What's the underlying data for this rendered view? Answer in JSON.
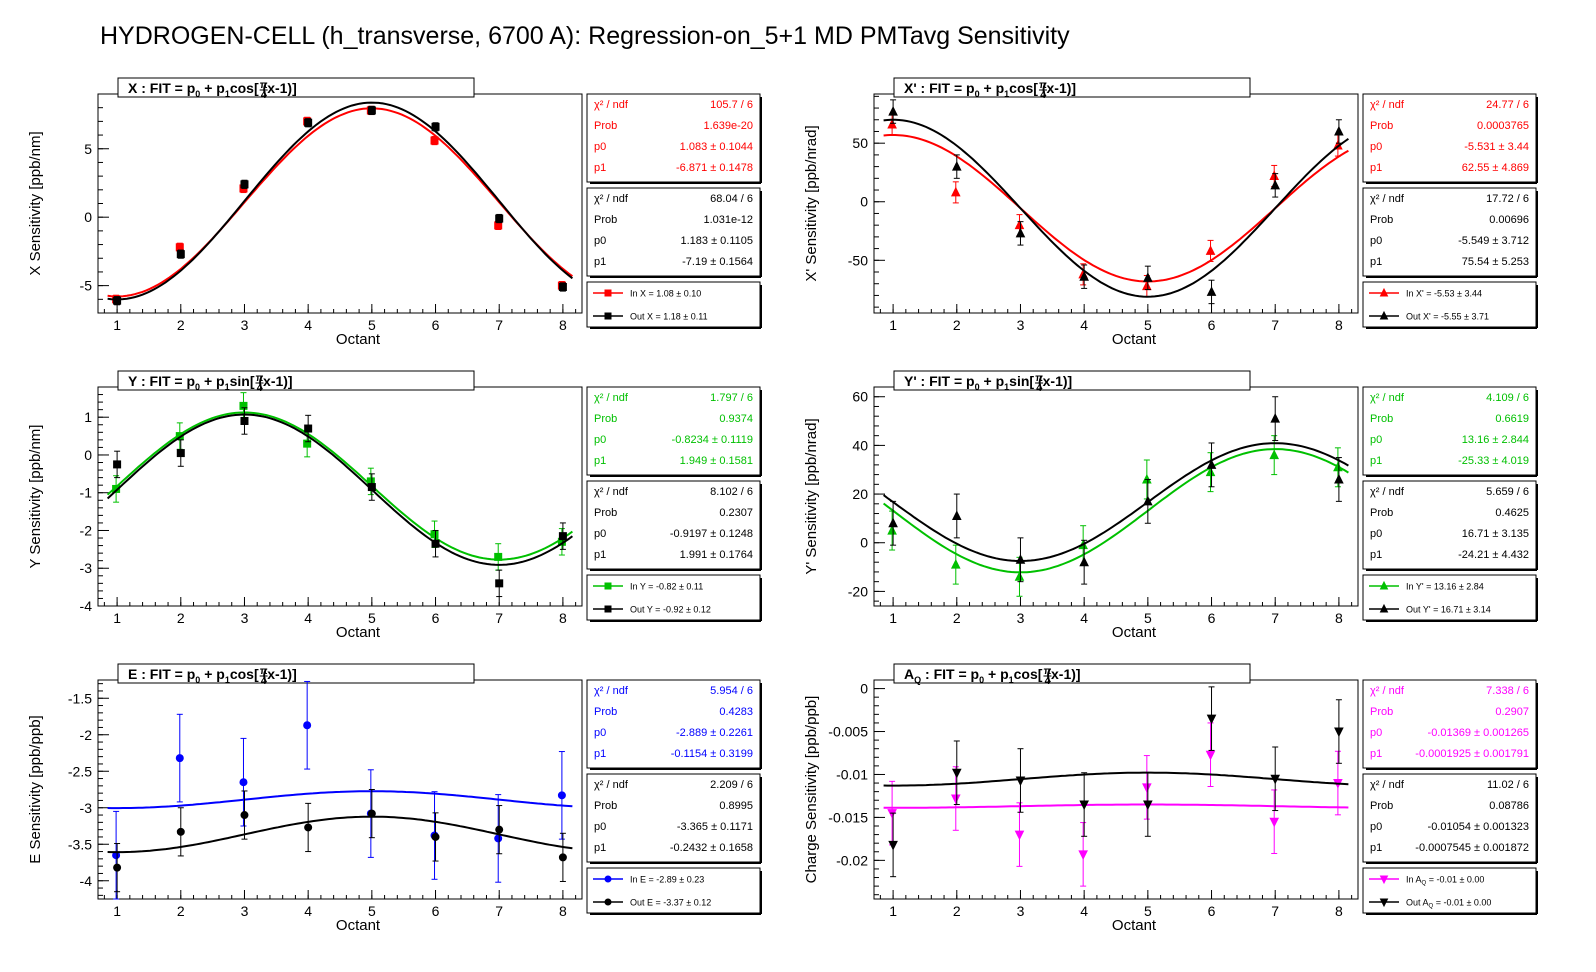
{
  "page_title": "HYDROGEN-CELL (h_transverse, 6700 A): Regression-on_5+1 MD PMTavg Sensitivity",
  "chart_data": [
    {
      "type": "scatter",
      "title_sym": "X",
      "title_fn": "cos",
      "ylabel": "X Sensitivity [ppb/nm]",
      "xlabel": "Octant",
      "xlim": [
        0.7,
        8.3
      ],
      "ylim": [
        -7,
        9
      ],
      "yticks": [
        -5,
        0,
        5
      ],
      "yticklabels": [
        "-5",
        "0",
        "5"
      ],
      "marker": "square",
      "in_color": "#ff0000",
      "series": [
        {
          "name": "In X = 1.08 ± 0.10",
          "x": [
            1,
            2,
            3,
            4,
            5,
            6,
            7,
            8
          ],
          "y": [
            -6.0,
            -2.2,
            2.1,
            7.0,
            7.8,
            5.6,
            -0.6,
            -5.0
          ],
          "err": [
            0.3,
            0.3,
            0.3,
            0.3,
            0.3,
            0.3,
            0.3,
            0.3
          ],
          "p0": 1.083,
          "p1": -6.871
        },
        {
          "name": "Out X = 1.18 ± 0.11",
          "x": [
            1,
            2,
            3,
            4,
            5,
            6,
            7,
            8
          ],
          "y": [
            -6.1,
            -2.7,
            2.4,
            6.9,
            7.8,
            6.6,
            -0.1,
            -5.1
          ],
          "err": [
            0.3,
            0.3,
            0.3,
            0.3,
            0.3,
            0.3,
            0.3,
            0.3
          ],
          "p0": 1.183,
          "p1": -7.19
        }
      ],
      "stats": [
        {
          "rows": [
            [
              "χ² / ndf",
              "105.7 / 6"
            ],
            [
              "Prob",
              "1.639e-20"
            ],
            [
              "p0",
              "1.083 ± 0.1044"
            ],
            [
              "p1",
              "-6.871 ± 0.1478"
            ]
          ]
        },
        {
          "rows": [
            [
              "χ² / ndf",
              "68.04 / 6"
            ],
            [
              "Prob",
              "1.031e-12"
            ],
            [
              "p0",
              "1.183 ± 0.1105"
            ],
            [
              "p1",
              "-7.19 ± 0.1564"
            ]
          ]
        }
      ]
    },
    {
      "type": "scatter",
      "title_sym": "X'",
      "title_fn": "cos",
      "ylabel": "X' Sensitivity [ppb/nrad]",
      "xlabel": "Octant",
      "xlim": [
        0.7,
        8.3
      ],
      "ylim": [
        -95,
        92
      ],
      "yticks": [
        -50,
        0,
        50
      ],
      "yticklabels": [
        "-50",
        "0",
        "50"
      ],
      "marker": "triangle-up",
      "in_color": "#ff0000",
      "series": [
        {
          "name": "In X' = -5.53 ± 3.44",
          "x": [
            1,
            2,
            3,
            4,
            5,
            6,
            7,
            8
          ],
          "y": [
            66,
            8,
            -20,
            -62,
            -72,
            -42,
            22,
            48
          ],
          "err": [
            9,
            9,
            9,
            9,
            9,
            9,
            9,
            9
          ],
          "p0": -5.531,
          "p1": 62.55
        },
        {
          "name": "Out X' = -5.55 ± 3.71",
          "x": [
            1,
            2,
            3,
            4,
            5,
            6,
            7,
            8
          ],
          "y": [
            77,
            30,
            -27,
            -64,
            -65,
            -77,
            14,
            60
          ],
          "err": [
            10,
            10,
            10,
            10,
            10,
            10,
            10,
            10
          ],
          "p0": -5.549,
          "p1": 75.54
        }
      ],
      "stats": [
        {
          "rows": [
            [
              "χ² / ndf",
              "24.77 / 6"
            ],
            [
              "Prob",
              "0.0003765"
            ],
            [
              "p0",
              "-5.531 ± 3.44"
            ],
            [
              "p1",
              "62.55 ± 4.869"
            ]
          ]
        },
        {
          "rows": [
            [
              "χ² / ndf",
              "17.72 / 6"
            ],
            [
              "Prob",
              "0.00696"
            ],
            [
              "p0",
              "-5.549 ± 3.712"
            ],
            [
              "p1",
              "75.54 ± 5.253"
            ]
          ]
        }
      ]
    },
    {
      "type": "scatter",
      "title_sym": "Y",
      "title_fn": "sin",
      "ylabel": "Y Sensitivity [ppb/nm]",
      "xlabel": "Octant",
      "xlim": [
        0.7,
        8.3
      ],
      "ylim": [
        -4.0,
        1.8
      ],
      "yticks": [
        -4,
        -3,
        -2,
        -1,
        0,
        1
      ],
      "yticklabels": [
        "-4",
        "-3",
        "-2",
        "-1",
        "0",
        "1"
      ],
      "marker": "square",
      "in_color": "#00c000",
      "series": [
        {
          "name": "In Y = -0.82 ± 0.11",
          "x": [
            1,
            2,
            3,
            4,
            5,
            6,
            7,
            8
          ],
          "y": [
            -0.9,
            0.5,
            1.3,
            0.3,
            -0.7,
            -2.1,
            -2.7,
            -2.3
          ],
          "err": [
            0.35,
            0.35,
            0.35,
            0.35,
            0.35,
            0.35,
            0.35,
            0.35
          ],
          "p0": -0.8234,
          "p1": 1.949
        },
        {
          "name": "Out Y = -0.92 ± 0.12",
          "x": [
            1,
            2,
            3,
            4,
            5,
            6,
            7,
            8
          ],
          "y": [
            -0.25,
            0.05,
            0.9,
            0.7,
            -0.85,
            -2.35,
            -3.4,
            -2.15
          ],
          "err": [
            0.35,
            0.35,
            0.35,
            0.35,
            0.35,
            0.35,
            0.35,
            0.35
          ],
          "p0": -0.9197,
          "p1": 1.991
        }
      ],
      "stats": [
        {
          "rows": [
            [
              "χ² / ndf",
              "1.797 / 6"
            ],
            [
              "Prob",
              "0.9374"
            ],
            [
              "p0",
              "-0.8234 ± 0.1119"
            ],
            [
              "p1",
              "1.949 ± 0.1581"
            ]
          ]
        },
        {
          "rows": [
            [
              "χ² / ndf",
              "8.102 / 6"
            ],
            [
              "Prob",
              "0.2307"
            ],
            [
              "p0",
              "-0.9197 ± 0.1248"
            ],
            [
              "p1",
              "1.991 ± 0.1764"
            ]
          ]
        }
      ]
    },
    {
      "type": "scatter",
      "title_sym": "Y'",
      "title_fn": "sin",
      "ylabel": "Y' Sensitivity [ppb/nrad]",
      "xlabel": "Octant",
      "xlim": [
        0.7,
        8.3
      ],
      "ylim": [
        -26,
        64
      ],
      "yticks": [
        -20,
        0,
        20,
        40,
        60
      ],
      "yticklabels": [
        "-20",
        "0",
        "20",
        "40",
        "60"
      ],
      "marker": "triangle-up",
      "in_color": "#00c000",
      "series": [
        {
          "name": "In Y' = 13.16 ± 2.84",
          "x": [
            1,
            2,
            3,
            4,
            5,
            6,
            7,
            8
          ],
          "y": [
            5,
            -9,
            -14,
            -1,
            26,
            29,
            36,
            31
          ],
          "err": [
            8,
            8,
            8,
            8,
            8,
            8,
            8,
            8
          ],
          "p0": 13.16,
          "p1": -25.33
        },
        {
          "name": "Out Y' = 16.71 ± 3.14",
          "x": [
            1,
            2,
            3,
            4,
            5,
            6,
            7,
            8
          ],
          "y": [
            8,
            11,
            -7,
            -8,
            17,
            32,
            51,
            26
          ],
          "err": [
            9,
            9,
            9,
            9,
            9,
            9,
            9,
            9
          ],
          "p0": 16.71,
          "p1": -24.21
        }
      ],
      "stats": [
        {
          "rows": [
            [
              "χ² / ndf",
              "4.109 / 6"
            ],
            [
              "Prob",
              "0.6619"
            ],
            [
              "p0",
              "13.16 ± 2.844"
            ],
            [
              "p1",
              "-25.33 ± 4.019"
            ]
          ]
        },
        {
          "rows": [
            [
              "χ² / ndf",
              "5.659 / 6"
            ],
            [
              "Prob",
              "0.4625"
            ],
            [
              "p0",
              "16.71 ± 3.135"
            ],
            [
              "p1",
              "-24.21 ± 4.432"
            ]
          ]
        }
      ]
    },
    {
      "type": "scatter",
      "title_sym": "E",
      "title_fn": "cos",
      "ylabel": "E Sensitivity [ppb/ppb]",
      "xlabel": "Octant",
      "xlim": [
        0.7,
        8.3
      ],
      "ylim": [
        -4.25,
        -1.25
      ],
      "yticks": [
        -4,
        -3.5,
        -3,
        -2.5,
        -2,
        -1.5
      ],
      "yticklabels": [
        "-4",
        "-3.5",
        "-3",
        "-2.5",
        "-2",
        "-1.5"
      ],
      "marker": "circle",
      "in_color": "#0000ff",
      "series": [
        {
          "name": "In E = -2.89 ± 0.23",
          "x": [
            1,
            2,
            3,
            4,
            5,
            6,
            7,
            8
          ],
          "y": [
            -3.65,
            -2.32,
            -2.65,
            -1.87,
            -3.08,
            -3.38,
            -3.42,
            -2.83
          ],
          "err": [
            0.6,
            0.6,
            0.6,
            0.6,
            0.6,
            0.6,
            0.6,
            0.6
          ],
          "p0": -2.889,
          "p1": -0.1154
        },
        {
          "name": "Out E = -3.37 ± 0.12",
          "x": [
            1,
            2,
            3,
            4,
            5,
            6,
            7,
            8
          ],
          "y": [
            -3.82,
            -3.33,
            -3.1,
            -3.27,
            -3.08,
            -3.4,
            -3.3,
            -3.68
          ],
          "err": [
            0.33,
            0.33,
            0.33,
            0.33,
            0.33,
            0.33,
            0.33,
            0.33
          ],
          "p0": -3.365,
          "p1": -0.2432
        }
      ],
      "stats": [
        {
          "rows": [
            [
              "χ² / ndf",
              "5.954 / 6"
            ],
            [
              "Prob",
              "0.4283"
            ],
            [
              "p0",
              "-2.889 ± 0.2261"
            ],
            [
              "p1",
              "-0.1154 ± 0.3199"
            ]
          ]
        },
        {
          "rows": [
            [
              "χ² / ndf",
              "2.209 / 6"
            ],
            [
              "Prob",
              "0.8995"
            ],
            [
              "p0",
              "-3.365 ± 0.1171"
            ],
            [
              "p1",
              "-0.2432 ± 0.1658"
            ]
          ]
        }
      ]
    },
    {
      "type": "scatter",
      "title_sym": "A",
      "title_sub": "Q",
      "title_fn": "cos",
      "ylabel": "Charge Sensitivity [ppb/ppb]",
      "xlabel": "Octant",
      "xlim": [
        0.7,
        8.3
      ],
      "ylim": [
        -0.0245,
        0.001
      ],
      "yticks": [
        -0.02,
        -0.015,
        -0.01,
        -0.005,
        0
      ],
      "yticklabels": [
        "-0.02",
        "-0.015",
        "-0.01",
        "-0.005",
        "0"
      ],
      "marker": "triangle-down",
      "in_color": "#ff00ff",
      "series": [
        {
          "name": "In A_Q = -0.01 ± 0.00",
          "label_main": "In A",
          "label_sub": "Q",
          "label_rest": " = -0.01 ± 0.00",
          "x": [
            1,
            2,
            3,
            4,
            5,
            6,
            7,
            8
          ],
          "y": [
            -0.0145,
            -0.0128,
            -0.017,
            -0.0193,
            -0.0115,
            -0.0077,
            -0.0155,
            -0.011
          ],
          "err": [
            0.0037,
            0.0037,
            0.0037,
            0.0037,
            0.0037,
            0.0037,
            0.0037,
            0.0037
          ],
          "p0": -0.01369,
          "p1": -0.0001925
        },
        {
          "name": "Out A_Q = -0.01 ± 0.00",
          "label_main": "Out A",
          "label_sub": "Q",
          "label_rest": " = -0.01 ± 0.00",
          "x": [
            1,
            2,
            3,
            4,
            5,
            6,
            7,
            8
          ],
          "y": [
            -0.0182,
            -0.0098,
            -0.0107,
            -0.0135,
            -0.0135,
            -0.0035,
            -0.0105,
            -0.005
          ],
          "err": [
            0.0037,
            0.0037,
            0.0037,
            0.0037,
            0.0037,
            0.0037,
            0.0037,
            0.0037
          ],
          "p0": -0.01054,
          "p1": -0.0007545
        }
      ],
      "stats": [
        {
          "rows": [
            [
              "χ² / ndf",
              "7.338 / 6"
            ],
            [
              "Prob",
              "0.2907"
            ],
            [
              "p0",
              "-0.01369 ± 0.001265"
            ],
            [
              "p1",
              "-0.0001925 ± 0.001791"
            ]
          ]
        },
        {
          "rows": [
            [
              "χ² / ndf",
              "11.02 / 6"
            ],
            [
              "Prob",
              "0.08786"
            ],
            [
              "p0",
              "-0.01054 ± 0.001323"
            ],
            [
              "p1",
              "-0.0007545 ± 0.001872"
            ]
          ]
        }
      ]
    }
  ]
}
